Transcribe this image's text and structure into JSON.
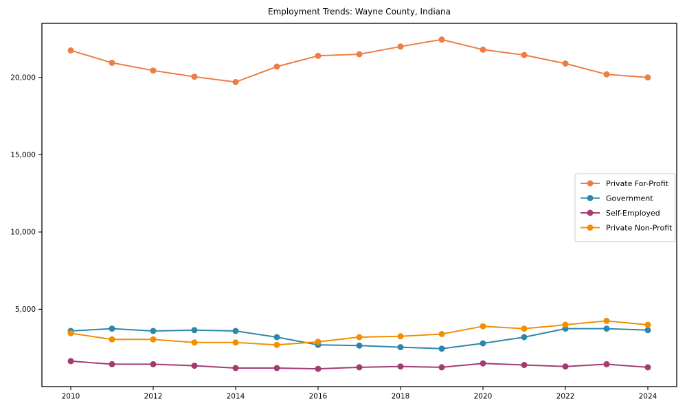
{
  "figure": {
    "background": "#ffffff",
    "frame_color": "#000000",
    "tick_color": "#000000",
    "legend_border_color": "#cccccc"
  },
  "chart_data": {
    "type": "line",
    "title": "Employment Trends: Wayne County, Indiana",
    "xlabel": "",
    "ylabel": "",
    "grid": false,
    "legend_position": "center right",
    "marker": "circle",
    "x": [
      2010,
      2011,
      2012,
      2013,
      2014,
      2015,
      2016,
      2017,
      2018,
      2019,
      2020,
      2021,
      2022,
      2023,
      2024
    ],
    "series": [
      {
        "name": "Private For-Profit",
        "color": "#ED7D45",
        "values": [
          21750,
          20950,
          20450,
          20050,
          19700,
          20700,
          21400,
          21500,
          22000,
          22450,
          21800,
          21450,
          20900,
          20200,
          20000
        ]
      },
      {
        "name": "Government",
        "color": "#2E86AB",
        "values": [
          3600,
          3750,
          3600,
          3650,
          3600,
          3200,
          2700,
          2650,
          2550,
          2450,
          2800,
          3200,
          3750,
          3750,
          3650
        ]
      },
      {
        "name": "Self-Employed",
        "color": "#A23B72",
        "values": [
          1650,
          1450,
          1450,
          1350,
          1200,
          1200,
          1150,
          1250,
          1300,
          1250,
          1500,
          1400,
          1300,
          1450,
          1250
        ]
      },
      {
        "name": "Private Non-Profit",
        "color": "#F18F01",
        "values": [
          3450,
          3050,
          3050,
          2850,
          2850,
          2700,
          2900,
          3200,
          3250,
          3400,
          3900,
          3750,
          4000,
          4250,
          4000
        ]
      }
    ],
    "xlim": [
      2009.3,
      2024.7
    ],
    "ylim": [
      0,
      23500
    ],
    "xticks": [
      2010,
      2012,
      2014,
      2016,
      2018,
      2020,
      2022,
      2024
    ],
    "yticks": [
      5000,
      10000,
      15000,
      20000
    ],
    "ytick_labels": [
      "5,000",
      "10,000",
      "15,000",
      "20,000"
    ]
  }
}
